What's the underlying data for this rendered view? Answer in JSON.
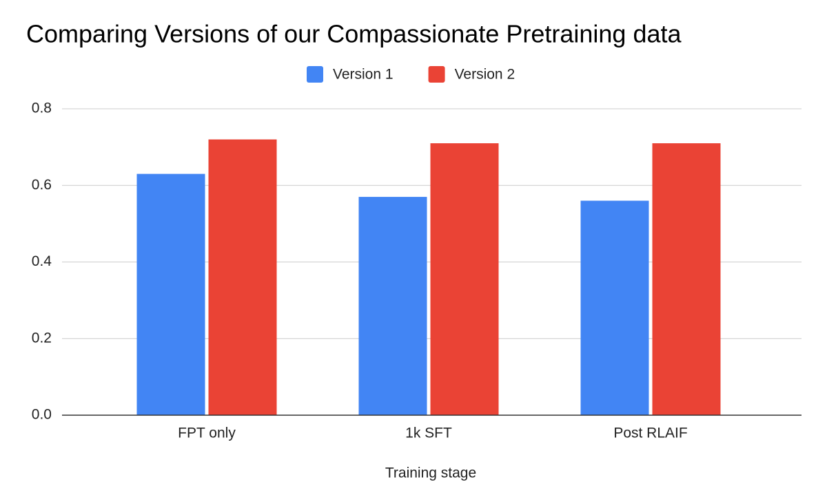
{
  "chart_data": {
    "type": "bar",
    "title": "Comparing Versions of our Compassionate Pretraining data",
    "x_label": "Training stage",
    "categories": [
      "FPT only",
      "1k SFT",
      "Post RLAIF"
    ],
    "series": [
      {
        "name": "Version 1",
        "color": "#4285f4",
        "values": [
          0.63,
          0.57,
          0.56
        ]
      },
      {
        "name": "Version 2",
        "color": "#ea4335",
        "values": [
          0.72,
          0.71,
          0.71
        ]
      }
    ],
    "ylim": [
      0,
      0.8
    ],
    "yticks": [
      {
        "value": 0,
        "label": "0.0"
      },
      0.2,
      0.4,
      0.6,
      0.8
    ],
    "grid": true,
    "legend": "top"
  }
}
